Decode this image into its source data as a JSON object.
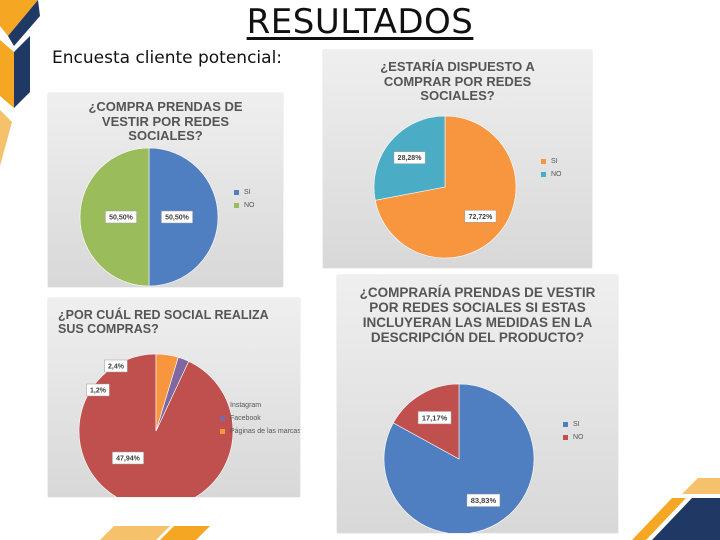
{
  "header": {
    "title": "RESULTADOS",
    "subtitle": "Encuesta cliente potencial:"
  },
  "colors": {
    "blue": "#4f7fc1",
    "green": "#9bbc5a",
    "orange": "#f8953f",
    "teal": "#4bacc6",
    "red": "#c0504d",
    "purple": "#7f67a2",
    "gold": "#f5a623",
    "navy": "#1f3864"
  },
  "chart_data": [
    {
      "type": "pie",
      "title": "¿COMPRA PRENDAS DE VESTIR POR REDES SOCIALES?",
      "categories": [
        "SI",
        "NO"
      ],
      "values": [
        50.5,
        50.5
      ],
      "labels": [
        "50,50%",
        "50,50%"
      ],
      "colors": [
        "#4f7fc1",
        "#9bbc5a"
      ],
      "legend": "right"
    },
    {
      "type": "pie",
      "title": "¿ESTARÍA DISPUESTO A COMPRAR POR REDES SOCIALES?",
      "categories": [
        "SI",
        "NO"
      ],
      "values": [
        72.72,
        28.28
      ],
      "labels": [
        "72,72%",
        "28,28%"
      ],
      "colors": [
        "#f8953f",
        "#4bacc6"
      ],
      "legend": "right"
    },
    {
      "type": "pie",
      "title": "¿POR CUÁL RED SOCIAL REALIZA SUS COMPRAS?",
      "categories": [
        "Instagram",
        "Facebook",
        "Páginas de las marcas"
      ],
      "values": [
        47.94,
        1.2,
        2.4
      ],
      "labels": [
        "47,94%",
        "1,2%",
        "2,4%"
      ],
      "colors": [
        "#c0504d",
        "#7f67a2",
        "#f8953f"
      ],
      "legend": "right"
    },
    {
      "type": "pie",
      "title": "¿COMPRARÍA PRENDAS DE VESTIR POR REDES SOCIALES SI ESTAS INCLUYERAN LAS MEDIDAS EN LA DESCRIPCIÓN DEL PRODUCTO?",
      "categories": [
        "SI",
        "NO"
      ],
      "values": [
        83.83,
        17.17
      ],
      "labels": [
        "83,83%",
        "17,17%"
      ],
      "colors": [
        "#4f7fc1",
        "#c0504d"
      ],
      "legend": "right"
    }
  ]
}
